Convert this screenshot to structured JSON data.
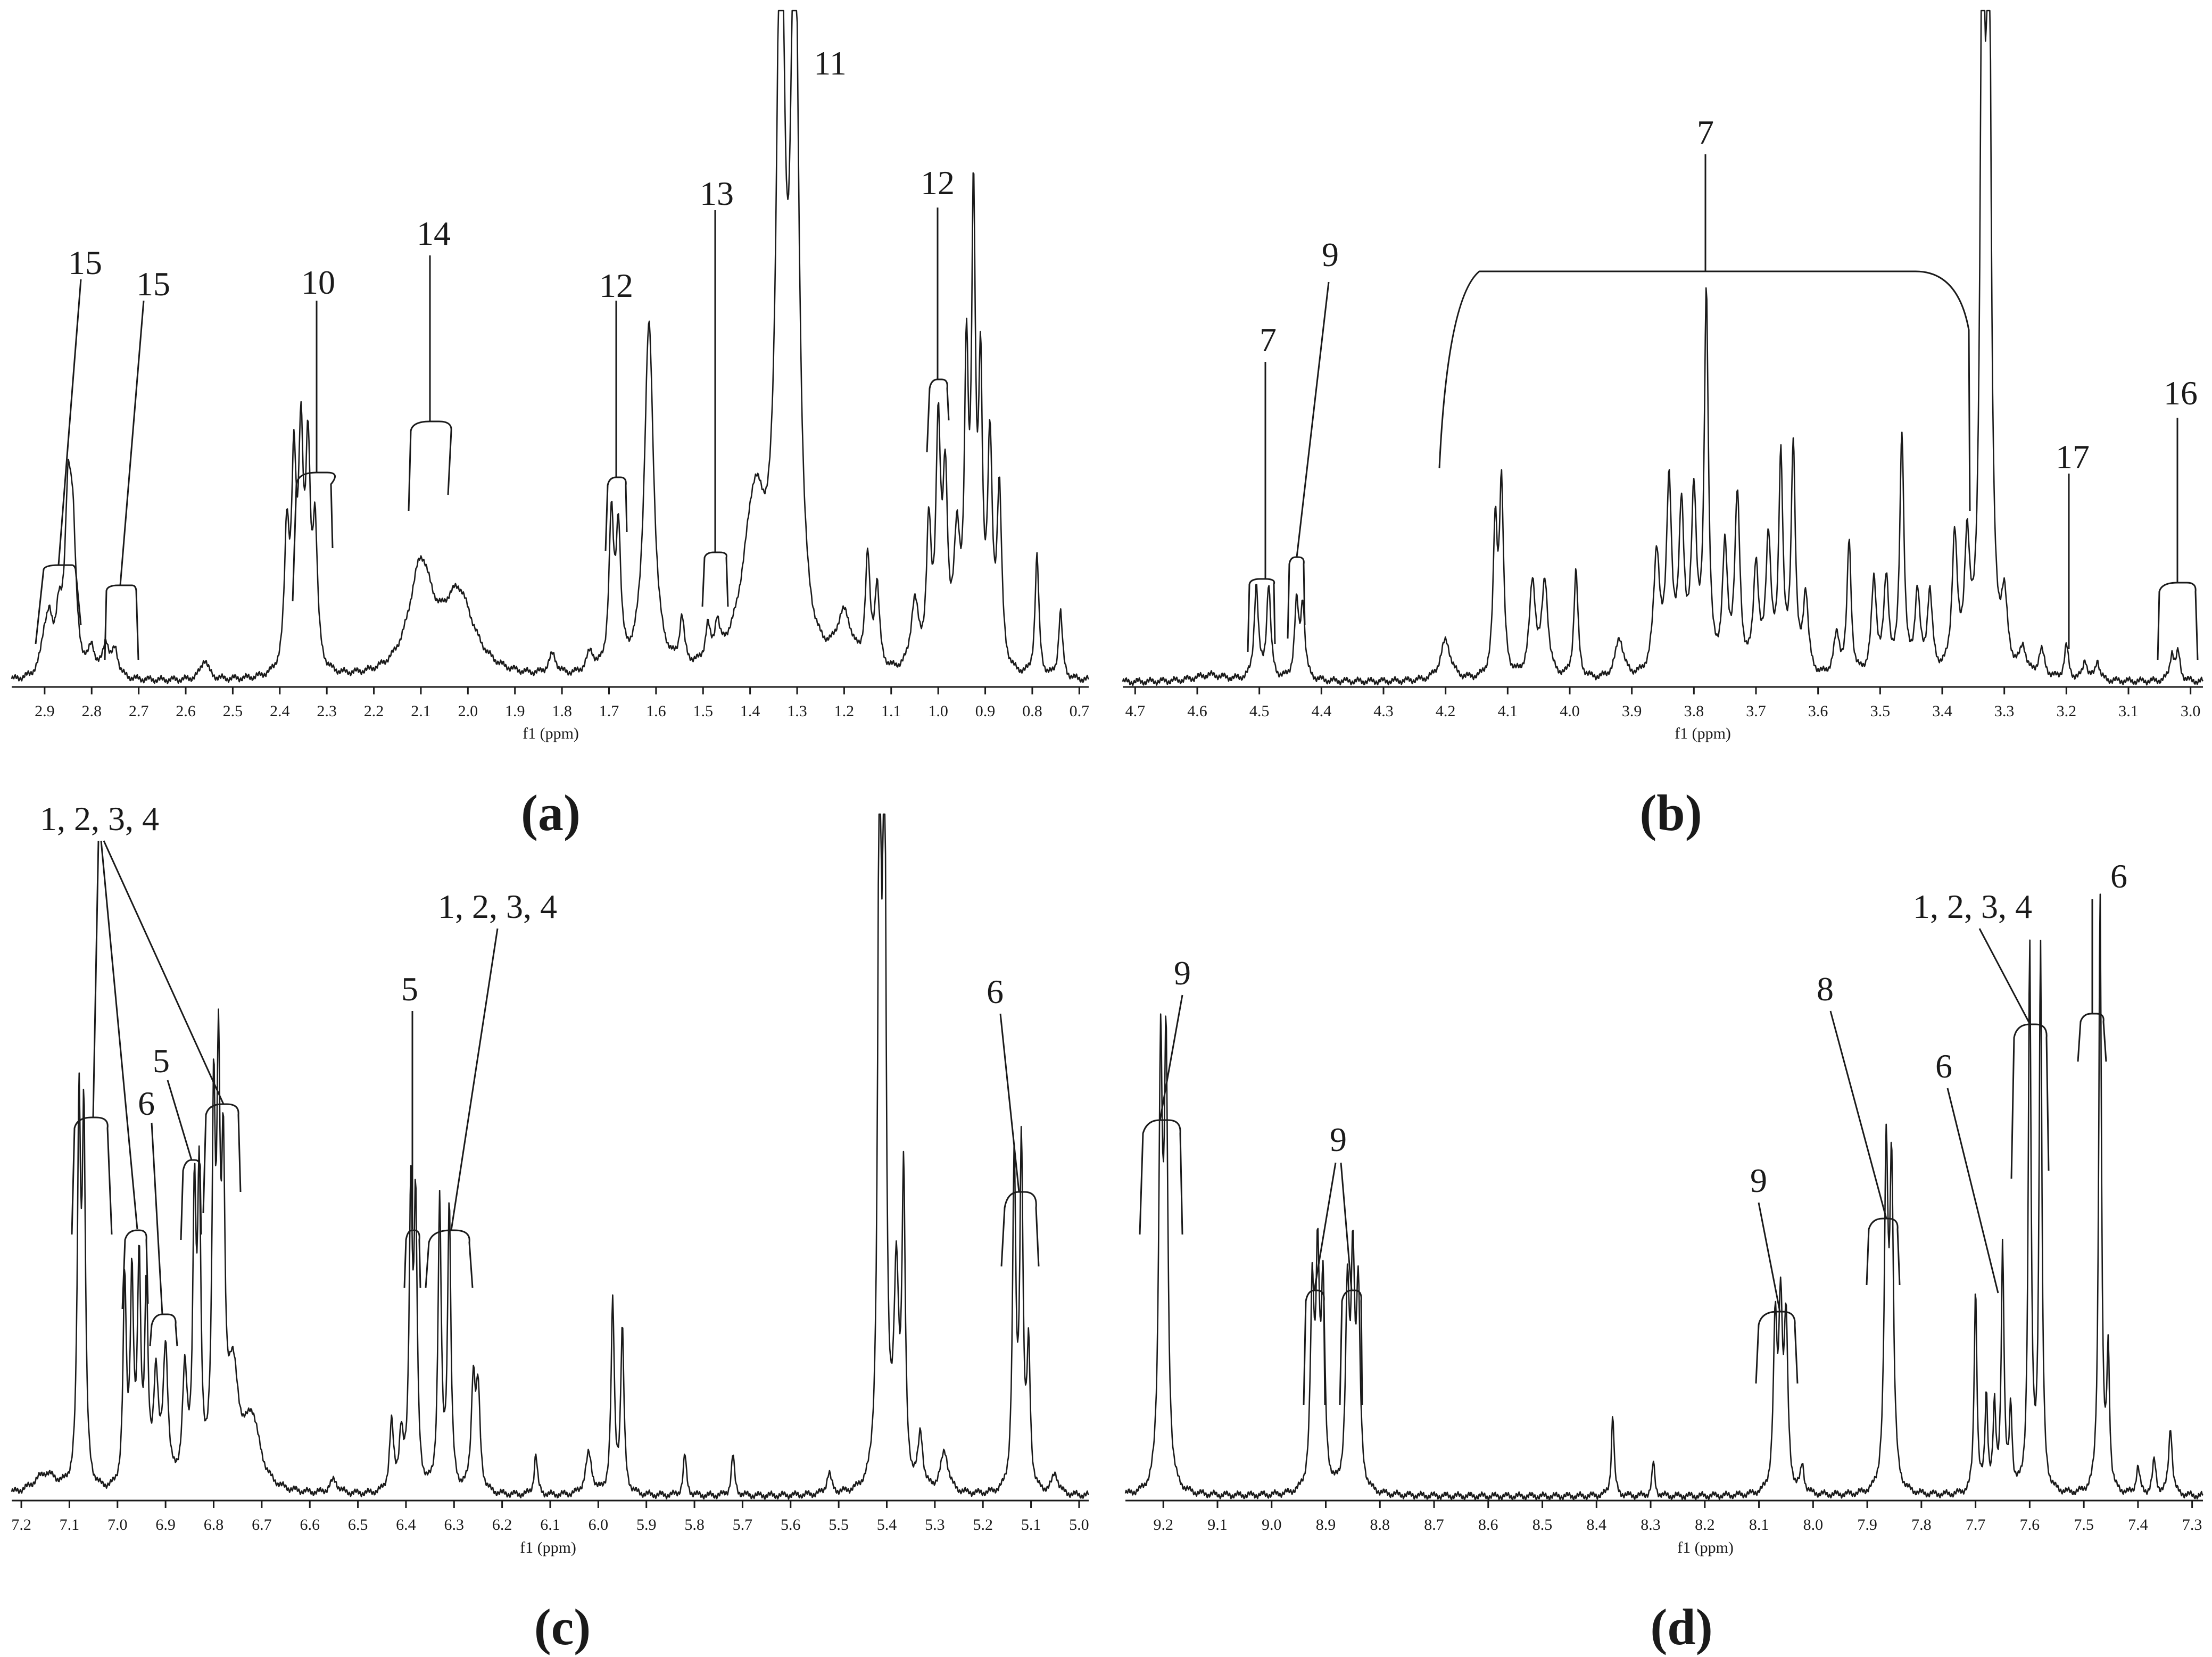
{
  "chart_data": [
    {
      "type": "line",
      "panel_label": "(a)",
      "xlabel": "f1 (ppm)",
      "xlim": [
        2.97,
        0.68
      ],
      "reversed_x": true,
      "ticks": [
        "2.9",
        "2.8",
        "2.7",
        "2.6",
        "2.5",
        "2.4",
        "2.3",
        "2.2",
        "2.1",
        "2.0",
        "1.9",
        "1.8",
        "1.7",
        "1.6",
        "1.5",
        "1.4",
        "1.3",
        "1.2",
        "1.1",
        "1.0",
        "0.9",
        "0.8",
        "0.7"
      ],
      "peaks": [
        {
          "ppm": 2.9,
          "h": 0.05,
          "w": 0.01
        },
        {
          "ppm": 2.89,
          "h": 0.06,
          "w": 0.008
        },
        {
          "ppm": 2.87,
          "h": 0.08,
          "w": 0.008
        },
        {
          "ppm": 2.85,
          "h": 0.24,
          "w": 0.008
        },
        {
          "ppm": 2.84,
          "h": 0.18,
          "w": 0.008
        },
        {
          "ppm": 2.8,
          "h": 0.04,
          "w": 0.008
        },
        {
          "ppm": 2.77,
          "h": 0.05,
          "w": 0.008
        },
        {
          "ppm": 2.75,
          "h": 0.04,
          "w": 0.008
        },
        {
          "ppm": 2.56,
          "h": 0.03,
          "w": 0.01
        },
        {
          "ppm": 2.385,
          "h": 0.2,
          "w": 0.006
        },
        {
          "ppm": 2.37,
          "h": 0.28,
          "w": 0.006
        },
        {
          "ppm": 2.355,
          "h": 0.32,
          "w": 0.006
        },
        {
          "ppm": 2.34,
          "h": 0.3,
          "w": 0.006
        },
        {
          "ppm": 2.325,
          "h": 0.2,
          "w": 0.006
        },
        {
          "ppm": 2.1,
          "h": 0.16,
          "w": 0.03
        },
        {
          "ppm": 2.02,
          "h": 0.12,
          "w": 0.04
        },
        {
          "ppm": 1.82,
          "h": 0.03,
          "w": 0.01
        },
        {
          "ppm": 1.74,
          "h": 0.03,
          "w": 0.01
        },
        {
          "ppm": 1.695,
          "h": 0.22,
          "w": 0.006
        },
        {
          "ppm": 1.68,
          "h": 0.2,
          "w": 0.006
        },
        {
          "ppm": 1.615,
          "h": 0.52,
          "w": 0.012
        },
        {
          "ppm": 1.545,
          "h": 0.07,
          "w": 0.006
        },
        {
          "ppm": 1.49,
          "h": 0.05,
          "w": 0.006
        },
        {
          "ppm": 1.47,
          "h": 0.05,
          "w": 0.006
        },
        {
          "ppm": 1.39,
          "h": 0.25,
          "w": 0.03
        },
        {
          "ppm": 1.335,
          "h": 1.1,
          "w": 0.01
        },
        {
          "ppm": 1.305,
          "h": 1.1,
          "w": 0.01
        },
        {
          "ppm": 1.2,
          "h": 0.08,
          "w": 0.02
        },
        {
          "ppm": 1.15,
          "h": 0.16,
          "w": 0.006
        },
        {
          "ppm": 1.13,
          "h": 0.12,
          "w": 0.006
        },
        {
          "ppm": 1.05,
          "h": 0.1,
          "w": 0.01
        },
        {
          "ppm": 1.02,
          "h": 0.2,
          "w": 0.006
        },
        {
          "ppm": 1.0,
          "h": 0.34,
          "w": 0.006
        },
        {
          "ppm": 0.985,
          "h": 0.26,
          "w": 0.006
        },
        {
          "ppm": 0.96,
          "h": 0.18,
          "w": 0.008
        },
        {
          "ppm": 0.94,
          "h": 0.42,
          "w": 0.005
        },
        {
          "ppm": 0.925,
          "h": 0.66,
          "w": 0.005
        },
        {
          "ppm": 0.91,
          "h": 0.4,
          "w": 0.005
        },
        {
          "ppm": 0.89,
          "h": 0.32,
          "w": 0.006
        },
        {
          "ppm": 0.87,
          "h": 0.26,
          "w": 0.006
        },
        {
          "ppm": 0.79,
          "h": 0.18,
          "w": 0.005
        },
        {
          "ppm": 0.74,
          "h": 0.1,
          "w": 0.005
        }
      ],
      "annotations": [
        "15",
        "15",
        "10",
        "14",
        "12",
        "13",
        "11",
        "12"
      ]
    },
    {
      "type": "line",
      "panel_label": "(b)",
      "xlabel": "f1 (ppm)",
      "xlim": [
        4.72,
        2.98
      ],
      "reversed_x": true,
      "ticks": [
        "4.7",
        "4.6",
        "4.5",
        "4.4",
        "4.3",
        "4.2",
        "4.1",
        "4.0",
        "3.9",
        "3.8",
        "3.7",
        "3.6",
        "3.5",
        "3.4",
        "3.3",
        "3.2",
        "3.1",
        "3.0"
      ],
      "peaks": [
        {
          "ppm": 4.58,
          "h": 0.01,
          "w": 0.03
        },
        {
          "ppm": 4.505,
          "h": 0.14,
          "w": 0.004
        },
        {
          "ppm": 4.485,
          "h": 0.14,
          "w": 0.004
        },
        {
          "ppm": 4.44,
          "h": 0.11,
          "w": 0.004
        },
        {
          "ppm": 4.43,
          "h": 0.11,
          "w": 0.004
        },
        {
          "ppm": 4.2,
          "h": 0.06,
          "w": 0.01
        },
        {
          "ppm": 4.12,
          "h": 0.22,
          "w": 0.004
        },
        {
          "ppm": 4.11,
          "h": 0.28,
          "w": 0.004
        },
        {
          "ppm": 4.06,
          "h": 0.14,
          "w": 0.006
        },
        {
          "ppm": 4.04,
          "h": 0.14,
          "w": 0.006
        },
        {
          "ppm": 3.99,
          "h": 0.16,
          "w": 0.004
        },
        {
          "ppm": 3.92,
          "h": 0.06,
          "w": 0.008
        },
        {
          "ppm": 3.86,
          "h": 0.18,
          "w": 0.006
        },
        {
          "ppm": 3.84,
          "h": 0.28,
          "w": 0.005
        },
        {
          "ppm": 3.82,
          "h": 0.24,
          "w": 0.005
        },
        {
          "ppm": 3.8,
          "h": 0.26,
          "w": 0.005
        },
        {
          "ppm": 3.78,
          "h": 0.56,
          "w": 0.004
        },
        {
          "ppm": 3.75,
          "h": 0.18,
          "w": 0.005
        },
        {
          "ppm": 3.73,
          "h": 0.26,
          "w": 0.005
        },
        {
          "ppm": 3.7,
          "h": 0.16,
          "w": 0.005
        },
        {
          "ppm": 3.68,
          "h": 0.2,
          "w": 0.005
        },
        {
          "ppm": 3.66,
          "h": 0.32,
          "w": 0.004
        },
        {
          "ppm": 3.64,
          "h": 0.34,
          "w": 0.004
        },
        {
          "ppm": 3.62,
          "h": 0.12,
          "w": 0.005
        },
        {
          "ppm": 3.57,
          "h": 0.06,
          "w": 0.006
        },
        {
          "ppm": 3.55,
          "h": 0.2,
          "w": 0.004
        },
        {
          "ppm": 3.51,
          "h": 0.14,
          "w": 0.005
        },
        {
          "ppm": 3.49,
          "h": 0.14,
          "w": 0.005
        },
        {
          "ppm": 3.465,
          "h": 0.36,
          "w": 0.004
        },
        {
          "ppm": 3.44,
          "h": 0.12,
          "w": 0.005
        },
        {
          "ppm": 3.42,
          "h": 0.12,
          "w": 0.005
        },
        {
          "ppm": 3.38,
          "h": 0.2,
          "w": 0.005
        },
        {
          "ppm": 3.36,
          "h": 0.18,
          "w": 0.005
        },
        {
          "ppm": 3.335,
          "h": 1.2,
          "w": 0.004
        },
        {
          "ppm": 3.325,
          "h": 1.2,
          "w": 0.004
        },
        {
          "ppm": 3.3,
          "h": 0.1,
          "w": 0.006
        },
        {
          "ppm": 3.27,
          "h": 0.04,
          "w": 0.006
        },
        {
          "ppm": 3.24,
          "h": 0.04,
          "w": 0.006
        },
        {
          "ppm": 3.2,
          "h": 0.05,
          "w": 0.004
        },
        {
          "ppm": 3.17,
          "h": 0.03,
          "w": 0.004
        },
        {
          "ppm": 3.15,
          "h": 0.03,
          "w": 0.004
        },
        {
          "ppm": 3.03,
          "h": 0.04,
          "w": 0.004
        },
        {
          "ppm": 3.02,
          "h": 0.04,
          "w": 0.004
        }
      ],
      "annotations": [
        "7",
        "9",
        "7",
        "17",
        "16"
      ]
    },
    {
      "type": "line",
      "panel_label": "(c)",
      "xlabel": "f1 (ppm)",
      "xlim": [
        7.22,
        4.98
      ],
      "reversed_x": true,
      "ticks": [
        "7.2",
        "7.1",
        "7.0",
        "6.9",
        "6.8",
        "6.7",
        "6.6",
        "6.5",
        "6.4",
        "6.3",
        "6.2",
        "6.1",
        "6.0",
        "5.9",
        "5.8",
        "5.7",
        "5.6",
        "5.5",
        "5.4",
        "5.3",
        "5.2",
        "5.1",
        "5.0"
      ],
      "peaks": [
        {
          "ppm": 7.15,
          "h": 0.03,
          "w": 0.03
        },
        {
          "ppm": 7.08,
          "h": 0.54,
          "w": 0.004
        },
        {
          "ppm": 7.07,
          "h": 0.52,
          "w": 0.004
        },
        {
          "ppm": 6.985,
          "h": 0.3,
          "w": 0.004
        },
        {
          "ppm": 6.97,
          "h": 0.3,
          "w": 0.004
        },
        {
          "ppm": 6.955,
          "h": 0.32,
          "w": 0.004
        },
        {
          "ppm": 6.94,
          "h": 0.28,
          "w": 0.004
        },
        {
          "ppm": 6.92,
          "h": 0.16,
          "w": 0.006
        },
        {
          "ppm": 6.9,
          "h": 0.2,
          "w": 0.006
        },
        {
          "ppm": 6.86,
          "h": 0.16,
          "w": 0.006
        },
        {
          "ppm": 6.84,
          "h": 0.4,
          "w": 0.004
        },
        {
          "ppm": 6.83,
          "h": 0.42,
          "w": 0.004
        },
        {
          "ppm": 6.8,
          "h": 0.52,
          "w": 0.004
        },
        {
          "ppm": 6.79,
          "h": 0.54,
          "w": 0.004
        },
        {
          "ppm": 6.78,
          "h": 0.4,
          "w": 0.004
        },
        {
          "ppm": 6.76,
          "h": 0.16,
          "w": 0.015
        },
        {
          "ppm": 6.72,
          "h": 0.1,
          "w": 0.02
        },
        {
          "ppm": 6.55,
          "h": 0.02,
          "w": 0.01
        },
        {
          "ppm": 6.43,
          "h": 0.1,
          "w": 0.005
        },
        {
          "ppm": 6.41,
          "h": 0.08,
          "w": 0.005
        },
        {
          "ppm": 6.39,
          "h": 0.42,
          "w": 0.004
        },
        {
          "ppm": 6.38,
          "h": 0.4,
          "w": 0.004
        },
        {
          "ppm": 6.33,
          "h": 0.42,
          "w": 0.004
        },
        {
          "ppm": 6.31,
          "h": 0.42,
          "w": 0.004
        },
        {
          "ppm": 6.26,
          "h": 0.16,
          "w": 0.005
        },
        {
          "ppm": 6.25,
          "h": 0.14,
          "w": 0.005
        },
        {
          "ppm": 6.13,
          "h": 0.06,
          "w": 0.004
        },
        {
          "ppm": 6.02,
          "h": 0.06,
          "w": 0.008
        },
        {
          "ppm": 5.97,
          "h": 0.28,
          "w": 0.004
        },
        {
          "ppm": 5.95,
          "h": 0.24,
          "w": 0.004
        },
        {
          "ppm": 5.82,
          "h": 0.06,
          "w": 0.004
        },
        {
          "ppm": 5.72,
          "h": 0.06,
          "w": 0.004
        },
        {
          "ppm": 5.52,
          "h": 0.03,
          "w": 0.006
        },
        {
          "ppm": 5.415,
          "h": 1.1,
          "w": 0.004
        },
        {
          "ppm": 5.405,
          "h": 1.1,
          "w": 0.004
        },
        {
          "ppm": 5.38,
          "h": 0.3,
          "w": 0.006
        },
        {
          "ppm": 5.365,
          "h": 0.44,
          "w": 0.004
        },
        {
          "ppm": 5.33,
          "h": 0.08,
          "w": 0.006
        },
        {
          "ppm": 5.28,
          "h": 0.06,
          "w": 0.01
        },
        {
          "ppm": 5.135,
          "h": 0.48,
          "w": 0.004
        },
        {
          "ppm": 5.12,
          "h": 0.5,
          "w": 0.004
        },
        {
          "ppm": 5.105,
          "h": 0.2,
          "w": 0.004
        },
        {
          "ppm": 5.05,
          "h": 0.03,
          "w": 0.008
        }
      ],
      "annotations": [
        "1, 2, 3, 4",
        "6",
        "5",
        "5",
        "1, 2, 3, 4",
        "6"
      ]
    },
    {
      "type": "line",
      "panel_label": "(d)",
      "xlabel": "f1 (ppm)",
      "xlim": [
        9.27,
        7.28
      ],
      "reversed_x": true,
      "ticks": [
        "9.2",
        "9.1",
        "9.0",
        "8.9",
        "8.8",
        "8.7",
        "8.6",
        "8.5",
        "8.4",
        "8.3",
        "8.2",
        "8.1",
        "8.0",
        "7.9",
        "7.8",
        "7.7",
        "7.6",
        "7.5",
        "7.4",
        "7.3"
      ],
      "peaks": [
        {
          "ppm": 9.205,
          "h": 0.62,
          "w": 0.004
        },
        {
          "ppm": 9.195,
          "h": 0.62,
          "w": 0.004
        },
        {
          "ppm": 8.925,
          "h": 0.28,
          "w": 0.004
        },
        {
          "ppm": 8.915,
          "h": 0.32,
          "w": 0.004
        },
        {
          "ppm": 8.905,
          "h": 0.28,
          "w": 0.004
        },
        {
          "ppm": 8.86,
          "h": 0.28,
          "w": 0.004
        },
        {
          "ppm": 8.85,
          "h": 0.32,
          "w": 0.004
        },
        {
          "ppm": 8.84,
          "h": 0.28,
          "w": 0.004
        },
        {
          "ppm": 8.37,
          "h": 0.12,
          "w": 0.003
        },
        {
          "ppm": 8.295,
          "h": 0.05,
          "w": 0.003
        },
        {
          "ppm": 8.07,
          "h": 0.24,
          "w": 0.004
        },
        {
          "ppm": 8.06,
          "h": 0.26,
          "w": 0.004
        },
        {
          "ppm": 8.05,
          "h": 0.24,
          "w": 0.004
        },
        {
          "ppm": 8.02,
          "h": 0.04,
          "w": 0.004
        },
        {
          "ppm": 7.865,
          "h": 0.48,
          "w": 0.004
        },
        {
          "ppm": 7.855,
          "h": 0.46,
          "w": 0.004
        },
        {
          "ppm": 7.7,
          "h": 0.3,
          "w": 0.003
        },
        {
          "ppm": 7.68,
          "h": 0.14,
          "w": 0.003
        },
        {
          "ppm": 7.665,
          "h": 0.12,
          "w": 0.003
        },
        {
          "ppm": 7.65,
          "h": 0.36,
          "w": 0.003
        },
        {
          "ppm": 7.635,
          "h": 0.12,
          "w": 0.003
        },
        {
          "ppm": 7.6,
          "h": 0.8,
          "w": 0.003
        },
        {
          "ppm": 7.58,
          "h": 0.8,
          "w": 0.003
        },
        {
          "ppm": 7.47,
          "h": 0.88,
          "w": 0.003
        },
        {
          "ppm": 7.455,
          "h": 0.2,
          "w": 0.003
        },
        {
          "ppm": 7.4,
          "h": 0.04,
          "w": 0.004
        },
        {
          "ppm": 7.37,
          "h": 0.05,
          "w": 0.004
        },
        {
          "ppm": 7.34,
          "h": 0.1,
          "w": 0.004
        }
      ],
      "annotations": [
        "9",
        "9",
        "9",
        "8",
        "6",
        "1, 2, 3, 4",
        "6"
      ]
    }
  ]
}
